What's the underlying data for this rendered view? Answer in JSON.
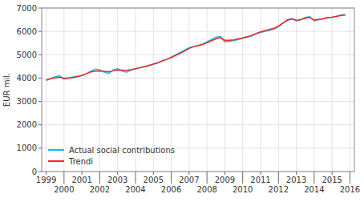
{
  "chart_data": {
    "type": "line",
    "ylabel": "EUR mil.",
    "x": [
      1999,
      1999.25,
      1999.5,
      1999.75,
      2000,
      2000.25,
      2000.5,
      2000.75,
      2001,
      2001.25,
      2001.5,
      2001.75,
      2002,
      2002.25,
      2002.5,
      2002.75,
      2003,
      2003.25,
      2003.5,
      2003.75,
      2004,
      2004.25,
      2004.5,
      2004.75,
      2005,
      2005.25,
      2005.5,
      2005.75,
      2006,
      2006.25,
      2006.5,
      2006.75,
      2007,
      2007.25,
      2007.5,
      2007.75,
      2008,
      2008.25,
      2008.5,
      2008.75,
      2009,
      2009.25,
      2009.5,
      2009.75,
      2010,
      2010.25,
      2010.5,
      2010.75,
      2011,
      2011.25,
      2011.5,
      2011.75,
      2012,
      2012.25,
      2012.5,
      2012.75,
      2013,
      2013.25,
      2013.5,
      2013.75,
      2014,
      2014.25,
      2014.5,
      2014.75,
      2015,
      2015.25,
      2015.5,
      2015.75
    ],
    "xlim": [
      1998.75,
      2016.25
    ],
    "xticks": [
      1999,
      2000,
      2001,
      2002,
      2003,
      2004,
      2005,
      2006,
      2007,
      2008,
      2009,
      2010,
      2011,
      2012,
      2013,
      2014,
      2015,
      2016
    ],
    "ylim": [
      0,
      7000
    ],
    "yticks": [
      0,
      1000,
      2000,
      3000,
      4000,
      5000,
      6000,
      7000
    ],
    "grid": true,
    "legend": "lower left",
    "series": [
      {
        "name": "Actual social contributions",
        "color": "#00BFFF",
        "values": [
          3900,
          3980,
          4060,
          4100,
          3950,
          3990,
          4050,
          4080,
          4100,
          4180,
          4300,
          4380,
          4350,
          4250,
          4200,
          4350,
          4400,
          4300,
          4250,
          4350,
          4400,
          4450,
          4500,
          4550,
          4600,
          4650,
          4750,
          4800,
          4900,
          5000,
          5100,
          5200,
          5300,
          5350,
          5400,
          5450,
          5550,
          5650,
          5750,
          5780,
          5550,
          5580,
          5600,
          5650,
          5700,
          5750,
          5800,
          5900,
          5950,
          6000,
          6050,
          6100,
          6200,
          6350,
          6500,
          6550,
          6450,
          6500,
          6600,
          6630,
          6450,
          6500,
          6550,
          6600,
          6600,
          6650,
          6700,
          6720
        ]
      },
      {
        "name": "Trendi",
        "color": "#FF2222",
        "values": [
          3920,
          3970,
          4010,
          4040,
          4000,
          4010,
          4020,
          4060,
          4120,
          4190,
          4260,
          4300,
          4310,
          4290,
          4270,
          4310,
          4350,
          4340,
          4330,
          4360,
          4400,
          4440,
          4490,
          4540,
          4600,
          4660,
          4730,
          4800,
          4880,
          4970,
          5060,
          5160,
          5270,
          5340,
          5390,
          5440,
          5510,
          5600,
          5680,
          5730,
          5620,
          5620,
          5640,
          5680,
          5720,
          5770,
          5830,
          5910,
          5980,
          6030,
          6080,
          6130,
          6220,
          6360,
          6480,
          6530,
          6480,
          6500,
          6560,
          6600,
          6480,
          6510,
          6540,
          6580,
          6610,
          6640,
          6680,
          6700
        ]
      }
    ]
  }
}
